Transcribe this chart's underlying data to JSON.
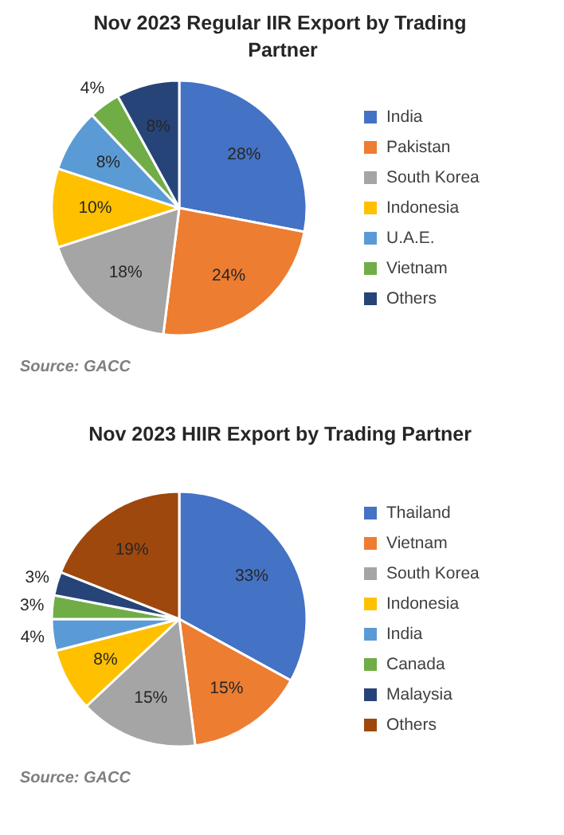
{
  "chart_data": [
    {
      "type": "pie",
      "title": "Nov 2023  Regular IIR Export by Trading Partner",
      "categories": [
        "India",
        "Pakistan",
        "South Korea",
        "Indonesia",
        "U.A.E.",
        "Vietnam",
        "Others"
      ],
      "values": [
        28,
        24,
        18,
        10,
        8,
        4,
        8
      ],
      "colors": [
        "#4472c4",
        "#ed7d31",
        "#a5a5a5",
        "#ffc000",
        "#5b9bd5",
        "#70ad47",
        "#264478"
      ],
      "value_labels": [
        "28%",
        "24%",
        "18%",
        "10%",
        "8%",
        "4%",
        "8%"
      ],
      "legend": "right",
      "annotations": [
        "Source: GACC"
      ]
    },
    {
      "type": "pie",
      "title": "Nov 2023  HIIR Export by Trading Partner",
      "categories": [
        "Thailand",
        "Vietnam",
        "South Korea",
        "Indonesia",
        "India",
        "Canada",
        "Malaysia",
        "Others"
      ],
      "values": [
        33,
        15,
        15,
        8,
        4,
        3,
        3,
        19
      ],
      "colors": [
        "#4472c4",
        "#ed7d31",
        "#a5a5a5",
        "#ffc000",
        "#5b9bd5",
        "#70ad47",
        "#264478",
        "#9e480e"
      ],
      "value_labels": [
        "33%",
        "15%",
        "15%",
        "8%",
        "4%",
        "3%",
        "3%",
        "19%"
      ],
      "legend": "right",
      "annotations": [
        "Source: GACC"
      ]
    }
  ]
}
